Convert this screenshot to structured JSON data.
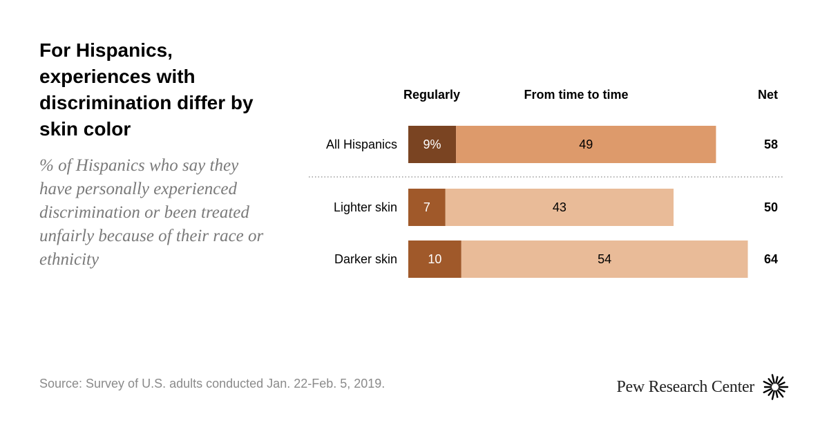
{
  "title": "For Hispanics, experiences with discrimination differ by skin color",
  "subtitle": "% of Hispanics who say they have personally experienced discrimination or been treated unfairly because of their race or ethnicity",
  "source": "Source: Survey of U.S. adults conducted Jan. 22-Feb. 5, 2019.",
  "brand": "Pew Research Center",
  "chart_data": {
    "type": "bar",
    "orientation": "horizontal",
    "stacked": true,
    "column_headers": {
      "regularly": "Regularly",
      "time_to_time": "From time to time",
      "net": "Net"
    },
    "categories": [
      "All Hispanics",
      "Lighter skin",
      "Darker skin"
    ],
    "series": [
      {
        "name": "Regularly",
        "values": [
          9,
          7,
          10
        ],
        "labels": [
          "9%",
          "7",
          "10"
        ]
      },
      {
        "name": "From time to time",
        "values": [
          49,
          43,
          54
        ],
        "labels": [
          "49",
          "43",
          "54"
        ]
      }
    ],
    "net": [
      58,
      50,
      64
    ],
    "xlim": [
      0,
      64
    ],
    "colors": {
      "regularly_all": "#7a4422",
      "time_all": "#dd9a6b",
      "regularly": "#a0592a",
      "time": "#e9bb98"
    }
  }
}
